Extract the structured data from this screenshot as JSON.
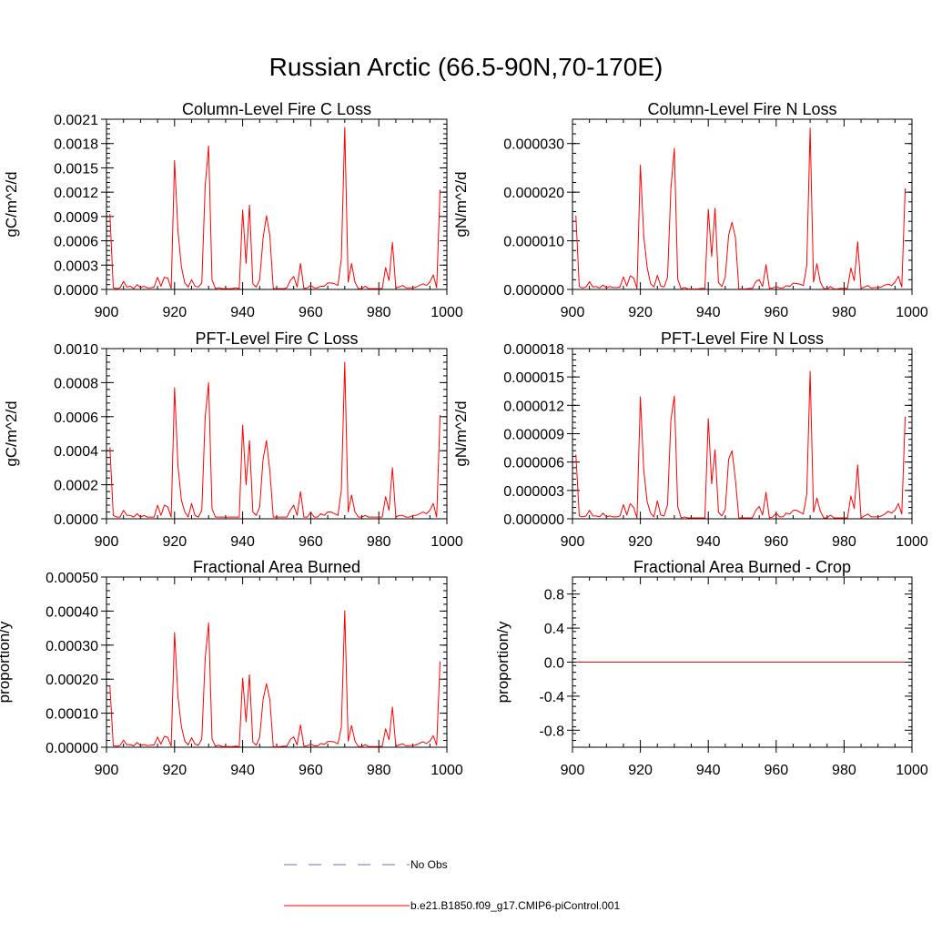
{
  "figure_title": "Russian Arctic (66.5-90N,70-170E)",
  "chart_data": [
    {
      "type": "line",
      "title": "Column-Level Fire C Loss",
      "xlabel": "",
      "ylabel": "gC/m^2/d",
      "xlim": [
        900,
        1000
      ],
      "ylim": [
        0,
        0.0021
      ],
      "xticks": [
        900,
        920,
        940,
        960,
        980,
        1000
      ],
      "xtick_labels": [
        "900",
        "920",
        "940",
        "960",
        "980",
        "1000"
      ],
      "yticks": [
        0,
        0.0003,
        0.0006,
        0.0009,
        0.0012,
        0.0015,
        0.0018,
        0.0021
      ],
      "ytick_labels": [
        "0.0000",
        "0.0003",
        "0.0006",
        "0.0009",
        "0.0012",
        "0.0015",
        "0.0018",
        "0.0021"
      ],
      "x_start": 901,
      "values": [
        0.00093,
        2e-05,
        1e-05,
        2e-05,
        0.0001,
        3e-05,
        4e-05,
        1e-05,
        6e-05,
        2e-05,
        4e-05,
        2e-05,
        2e-05,
        3e-05,
        0.00015,
        4e-05,
        0.00015,
        0.00014,
        1e-05,
        0.00159,
        0.00072,
        0.00028,
        8e-05,
        3e-05,
        0.00012,
        4e-05,
        3e-05,
        8e-05,
        0.00128,
        0.00177,
        0.00012,
        1e-05,
        2e-05,
        1e-05,
        1e-05,
        1e-05,
        1e-05,
        2e-05,
        1e-05,
        0.00098,
        0.00032,
        0.00104,
        7e-05,
        3e-05,
        0.00012,
        0.00063,
        0.00091,
        0.00066,
        1e-05,
        1e-05,
        1e-05,
        1e-05,
        2e-05,
        0.00011,
        0.00016,
        3e-05,
        0.00032,
        1e-05,
        2e-05,
        5e-05,
        2e-05,
        2e-05,
        4e-05,
        4e-05,
        8e-05,
        8e-05,
        7e-05,
        5e-05,
        0.00038,
        0.002,
        9e-05,
        0.00032,
        9e-05,
        1e-05,
        1e-05,
        4e-05,
        1e-05,
        1e-05,
        1e-05,
        1e-05,
        1e-05,
        0.00027,
        0.00011,
        0.00058,
        2e-05,
        3e-05,
        5e-05,
        2e-05,
        2e-05,
        2e-05,
        3e-05,
        5e-05,
        7e-05,
        5e-05,
        9e-05,
        0.00018,
        2e-05,
        0.00123
      ],
      "series_label": "b.e21.B1850.f09_g17.CMIP6-piControl.001",
      "line_color": "#ff0000"
    },
    {
      "type": "line",
      "title": "Column-Level Fire N Loss",
      "xlabel": "",
      "ylabel": "gN/m^2/d",
      "xlim": [
        900,
        1000
      ],
      "ylim": [
        0,
        3.5e-05
      ],
      "xticks": [
        900,
        920,
        940,
        960,
        980,
        1000
      ],
      "xtick_labels": [
        "900",
        "920",
        "940",
        "960",
        "980",
        "1000"
      ],
      "yticks": [
        0,
        1e-05,
        2e-05,
        3e-05
      ],
      "ytick_labels": [
        "0.000000",
        "0.000010",
        "0.000020",
        "0.000030"
      ],
      "x_start": 901,
      "values": [
        1.52e-05,
        6e-07,
        3e-07,
        5e-07,
        1.6e-06,
        5e-07,
        6e-07,
        3e-07,
        9e-07,
        3e-07,
        6e-07,
        4e-07,
        4e-07,
        5e-07,
        2.6e-06,
        7e-07,
        2.8e-06,
        2.4e-06,
        2e-07,
        2.56e-05,
        1.09e-05,
        4.5e-06,
        1.2e-06,
        5e-07,
        2.9e-06,
        7e-07,
        5e-07,
        2.5e-06,
        2.09e-05,
        2.9e-05,
        2.1e-06,
        1e-07,
        4e-07,
        1e-07,
        1e-07,
        1e-07,
        1e-07,
        2e-07,
        2e-07,
        1.65e-05,
        6.8e-06,
        1.67e-05,
        1.4e-06,
        6e-07,
        2.5e-06,
        1.12e-05,
        1.38e-05,
        1.06e-05,
        1e-07,
        1e-07,
        1e-07,
        2e-07,
        2e-07,
        1.6e-06,
        2e-06,
        6e-07,
        5.1e-06,
        2e-07,
        3e-07,
        6e-07,
        3e-07,
        3e-07,
        8e-07,
        6e-07,
        1.3e-06,
        1.2e-06,
        1.1e-06,
        8e-07,
        4.9e-06,
        3.32e-05,
        1.5e-06,
        5.3e-06,
        1.5e-06,
        2e-07,
        1e-07,
        6e-07,
        1e-07,
        1e-07,
        2e-07,
        2e-07,
        2e-07,
        4.4e-06,
        1.8e-06,
        9.8e-06,
        2e-07,
        5e-07,
        8e-07,
        3e-07,
        4e-07,
        4e-07,
        5e-07,
        9e-07,
        1.1e-06,
        8e-07,
        1.5e-06,
        2.7e-06,
        5e-07,
        2.08e-05
      ],
      "series_label": "b.e21.B1850.f09_g17.CMIP6-piControl.001",
      "line_color": "#ff0000"
    },
    {
      "type": "line",
      "title": "PFT-Level Fire C Loss",
      "xlabel": "",
      "ylabel": "gC/m^2/d",
      "xlim": [
        900,
        1000
      ],
      "ylim": [
        0,
        0.001
      ],
      "xticks": [
        900,
        920,
        940,
        960,
        980,
        1000
      ],
      "xtick_labels": [
        "900",
        "920",
        "940",
        "960",
        "980",
        "1000"
      ],
      "yticks": [
        0,
        0.0002,
        0.0004,
        0.0006,
        0.0008,
        0.001
      ],
      "ytick_labels": [
        "0.0000",
        "0.0002",
        "0.0004",
        "0.0006",
        "0.0008",
        "0.0010"
      ],
      "x_start": 901,
      "values": [
        0.00042,
        2e-05,
        1e-05,
        1e-05,
        5e-05,
        2e-05,
        2e-05,
        1e-05,
        3e-05,
        1e-05,
        2e-05,
        1e-05,
        1e-05,
        1e-05,
        8e-05,
        2e-05,
        8e-05,
        7e-05,
        1e-05,
        0.00077,
        0.00031,
        0.00011,
        4e-05,
        1e-05,
        9e-05,
        2e-05,
        1e-05,
        5e-05,
        0.0006,
        0.0008,
        6e-05,
        1e-05,
        1e-05,
        1e-05,
        1e-05,
        1e-05,
        1e-05,
        1e-05,
        1e-05,
        0.00055,
        0.0002,
        0.00046,
        4e-05,
        2e-05,
        7e-05,
        0.00035,
        0.00046,
        0.00028,
        1e-05,
        1e-05,
        1e-05,
        1e-05,
        1e-05,
        5e-05,
        8e-05,
        2e-05,
        0.00016,
        1e-05,
        1e-05,
        4e-05,
        1e-05,
        1e-05,
        3e-05,
        2e-05,
        4e-05,
        4e-05,
        3e-05,
        2e-05,
        0.00017,
        0.00092,
        4e-05,
        0.00014,
        4e-05,
        1e-05,
        1e-05,
        2e-05,
        1e-05,
        1e-05,
        1e-05,
        1e-05,
        1e-05,
        0.00013,
        5e-05,
        0.0003,
        1e-05,
        2e-05,
        2e-05,
        1e-05,
        1e-05,
        2e-05,
        2e-05,
        3e-05,
        4e-05,
        3e-05,
        5e-05,
        9e-05,
        1e-05,
        0.00061
      ],
      "series_label": "b.e21.B1850.f09_g17.CMIP6-piControl.001",
      "line_color": "#ff0000"
    },
    {
      "type": "line",
      "title": "PFT-Level Fire N Loss",
      "xlabel": "",
      "ylabel": "gN/m^2/d",
      "xlim": [
        900,
        1000
      ],
      "ylim": [
        0,
        1.8e-05
      ],
      "xticks": [
        900,
        920,
        940,
        960,
        980,
        1000
      ],
      "xtick_labels": [
        "900",
        "920",
        "940",
        "960",
        "980",
        "1000"
      ],
      "yticks": [
        0,
        3e-06,
        6e-06,
        9e-06,
        1.2e-05,
        1.5e-05,
        1.8e-05
      ],
      "ytick_labels": [
        "0.000000",
        "0.000003",
        "0.000006",
        "0.000009",
        "0.000012",
        "0.000015",
        "0.000018"
      ],
      "x_start": 901,
      "values": [
        6.8e-06,
        3e-07,
        2e-07,
        3e-07,
        9e-07,
        3e-07,
        3e-07,
        2e-07,
        6e-07,
        2e-07,
        3e-07,
        2e-07,
        2e-07,
        3e-07,
        1.5e-06,
        4e-07,
        1.6e-06,
        1.2e-06,
        1e-07,
        1.29e-05,
        5.1e-06,
        1.8e-06,
        6e-07,
        2e-07,
        1.9e-06,
        4e-07,
        3e-07,
        1.5e-06,
        1.05e-05,
        1.3e-05,
        1.3e-06,
        1e-07,
        2e-07,
        1e-07,
        1e-07,
        1e-07,
        1e-07,
        1e-07,
        1e-07,
        1.06e-05,
        3.7e-06,
        7.3e-06,
        7e-07,
        3e-07,
        1e-06,
        6.3e-06,
        7.2e-06,
        4.1e-06,
        1e-07,
        1e-07,
        1e-07,
        1e-07,
        1e-07,
        9e-07,
        1.3e-06,
        4e-07,
        2.8e-06,
        1e-07,
        2e-07,
        6e-07,
        2e-07,
        2e-07,
        6e-07,
        5e-07,
        9e-07,
        9e-07,
        7e-07,
        5e-07,
        2.6e-06,
        1.56e-05,
        7e-07,
        2.2e-06,
        8e-07,
        1e-07,
        1e-07,
        4e-07,
        1e-07,
        1e-07,
        1e-07,
        1e-07,
        1e-07,
        2.4e-06,
        1.1e-06,
        5.7e-06,
        1e-07,
        3e-07,
        5e-07,
        2e-07,
        2e-07,
        2e-07,
        3e-07,
        5e-07,
        8e-07,
        6e-07,
        9e-07,
        1.6e-06,
        5e-07,
        1.08e-05
      ],
      "series_label": "b.e21.B1850.f09_g17.CMIP6-piControl.001",
      "line_color": "#ff0000"
    },
    {
      "type": "line",
      "title": "Fractional Area Burned",
      "xlabel": "",
      "ylabel": "proportion/y",
      "xlim": [
        900,
        1000
      ],
      "ylim": [
        0,
        0.0005
      ],
      "xticks": [
        900,
        920,
        940,
        960,
        980,
        1000
      ],
      "xtick_labels": [
        "900",
        "920",
        "940",
        "960",
        "980",
        "1000"
      ],
      "yticks": [
        0,
        0.0001,
        0.0002,
        0.0003,
        0.0004,
        0.0005
      ],
      "ytick_labels": [
        "0.00000",
        "0.00010",
        "0.00020",
        "0.00030",
        "0.00040",
        "0.00050"
      ],
      "x_start": 901,
      "values": [
        0.000182,
        4e-06,
        3e-06,
        5e-06,
        2.1e-05,
        7e-06,
        8e-06,
        4e-06,
        1.4e-05,
        5e-06,
        8e-06,
        5e-06,
        6e-06,
        7e-06,
        3e-05,
        9e-06,
        3.2e-05,
        2.9e-05,
        3e-06,
        0.000337,
        0.000149,
        6.1e-05,
        1.8e-05,
        7e-06,
        2.8e-05,
        9e-06,
        6e-06,
        2.4e-05,
        0.000262,
        0.000365,
        2.5e-05,
        3e-06,
        6e-06,
        2e-06,
        2e-06,
        2e-06,
        2e-06,
        3e-06,
        2e-06,
        0.000203,
        7.5e-05,
        0.000213,
        1.5e-05,
        6e-06,
        2.9e-05,
        0.00014,
        0.000187,
        0.000139,
        2e-06,
        1e-06,
        2e-06,
        3e-06,
        3e-06,
        2.3e-05,
        3e-05,
        7e-06,
        6.6e-05,
        3e-06,
        4e-06,
        1e-05,
        4e-06,
        4e-06,
        1.1e-05,
        8e-06,
        1.7e-05,
        1.7e-05,
        1.5e-05,
        1e-05,
        5.9e-05,
        0.000401,
        1.8e-05,
        6.4e-05,
        1.8e-05,
        2e-06,
        2e-06,
        8e-06,
        2e-06,
        2e-06,
        2e-06,
        2e-06,
        3e-06,
        5.4e-05,
        2.2e-05,
        0.000118,
        3e-06,
        7e-06,
        1e-05,
        4e-06,
        5e-06,
        5e-06,
        7e-06,
        1.2e-05,
        1.6e-05,
        1.1e-05,
        1.8e-05,
        3.4e-05,
        6e-06,
        0.000252
      ],
      "series_label": "b.e21.B1850.f09_g17.CMIP6-piControl.001",
      "line_color": "#ff0000"
    },
    {
      "type": "line",
      "title": "Fractional Area Burned - Crop",
      "xlabel": "",
      "ylabel": "proportion/y",
      "xlim": [
        900,
        1000
      ],
      "ylim": [
        -1,
        1
      ],
      "xticks": [
        900,
        920,
        940,
        960,
        980,
        1000
      ],
      "xtick_labels": [
        "900",
        "920",
        "940",
        "960",
        "980",
        "1000"
      ],
      "yticks": [
        -0.8,
        -0.4,
        0,
        0.4,
        0.8
      ],
      "ytick_labels": [
        "-0.8",
        "-0.4",
        "0.0",
        "0.4",
        "0.8"
      ],
      "x_start": 901,
      "values": [
        0,
        0,
        0,
        0,
        0,
        0,
        0,
        0,
        0,
        0,
        0,
        0,
        0,
        0,
        0,
        0,
        0,
        0,
        0,
        0,
        0,
        0,
        0,
        0,
        0,
        0,
        0,
        0,
        0,
        0,
        0,
        0,
        0,
        0,
        0,
        0,
        0,
        0,
        0,
        0,
        0,
        0,
        0,
        0,
        0,
        0,
        0,
        0,
        0,
        0,
        0,
        0,
        0,
        0,
        0,
        0,
        0,
        0,
        0,
        0,
        0,
        0,
        0,
        0,
        0,
        0,
        0,
        0,
        0,
        0,
        0,
        0,
        0,
        0,
        0,
        0,
        0,
        0,
        0,
        0,
        0,
        0,
        0,
        0,
        0,
        0,
        0,
        0,
        0,
        0,
        0,
        0,
        0,
        0,
        0,
        0,
        0,
        0
      ],
      "series_label": "b.e21.B1850.f09_g17.CMIP6-piControl.001",
      "line_color": "#ff0000"
    }
  ],
  "legend": {
    "items": [
      {
        "label": "No Obs",
        "style": "dashed",
        "color": "#6e6ec8"
      },
      {
        "label": "b.e21.B1850.f09_g17.CMIP6-piControl.001",
        "style": "solid",
        "color": "#ff0000"
      }
    ]
  }
}
